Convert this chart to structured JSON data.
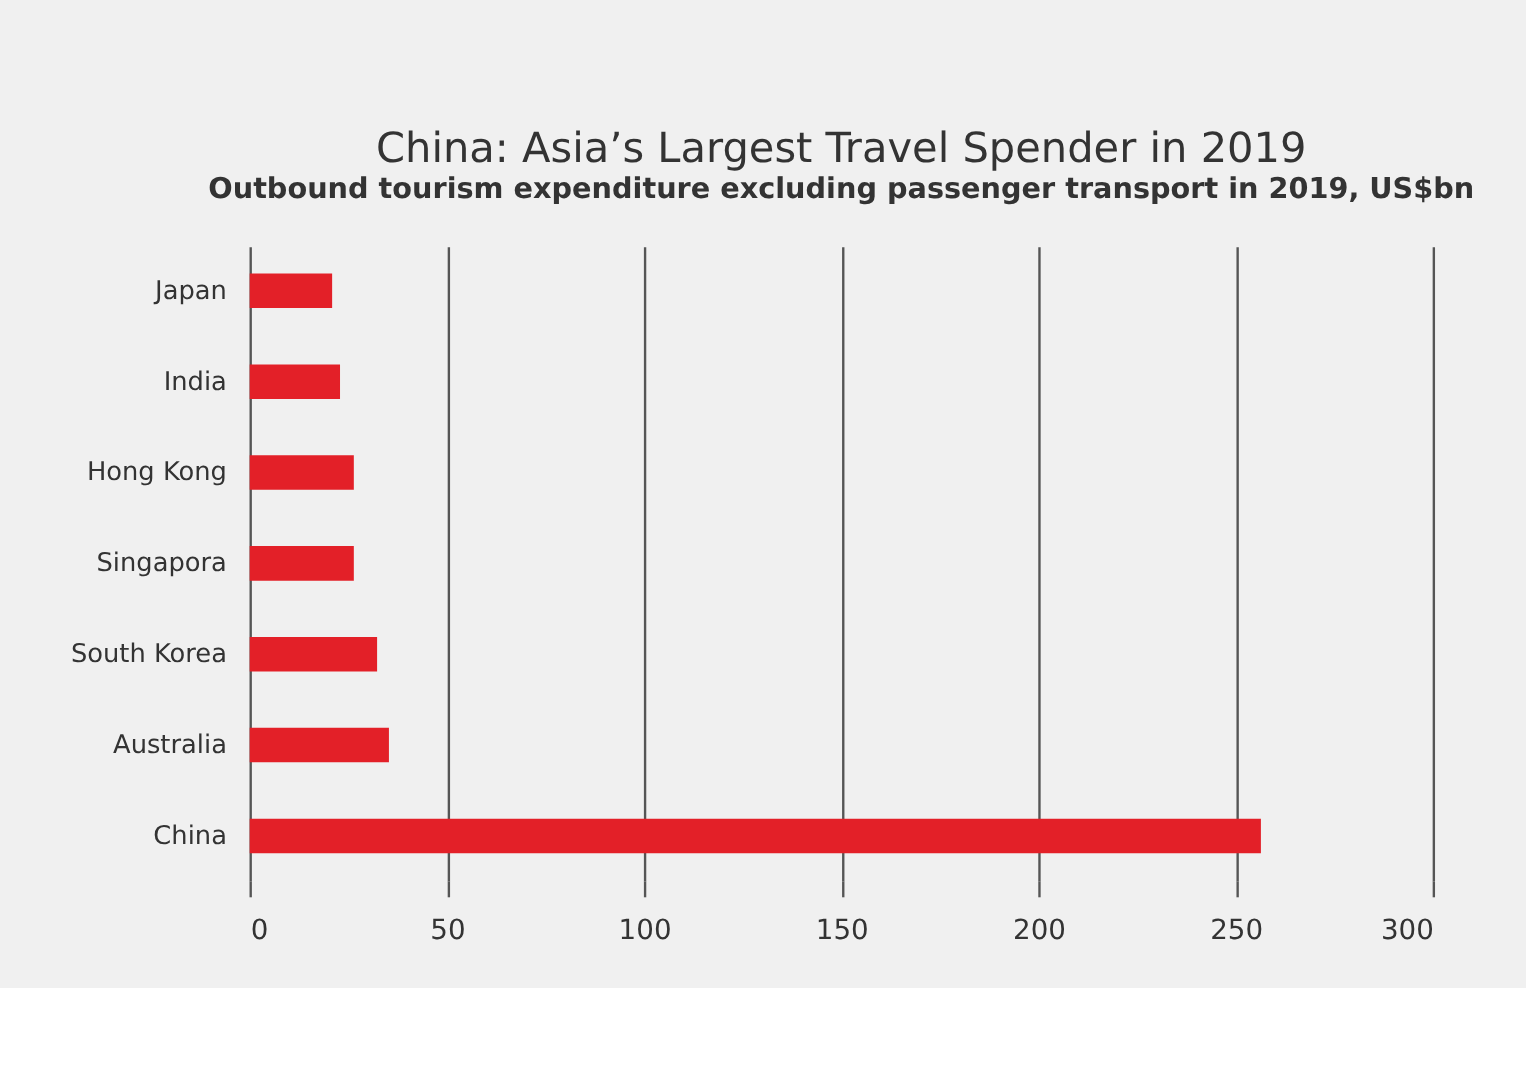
{
  "chart_data": {
    "type": "bar",
    "orientation": "horizontal",
    "title": "China: Asia’s Largest Travel Spender in 2019",
    "subtitle": "Outbound tourism expenditure excluding passenger transport in 2019, US$bn",
    "categories": [
      "Japan",
      "India",
      "Hong Kong",
      "Singapora",
      "South Korea",
      "Australia",
      "China"
    ],
    "values": [
      20.9,
      22.9,
      26.4,
      26.4,
      32.3,
      35.3,
      256.4
    ],
    "color": "#e32028",
    "xlim": [
      0,
      300
    ],
    "xticks": [
      0,
      50,
      100,
      150,
      200,
      250,
      300
    ],
    "grid": "x"
  }
}
